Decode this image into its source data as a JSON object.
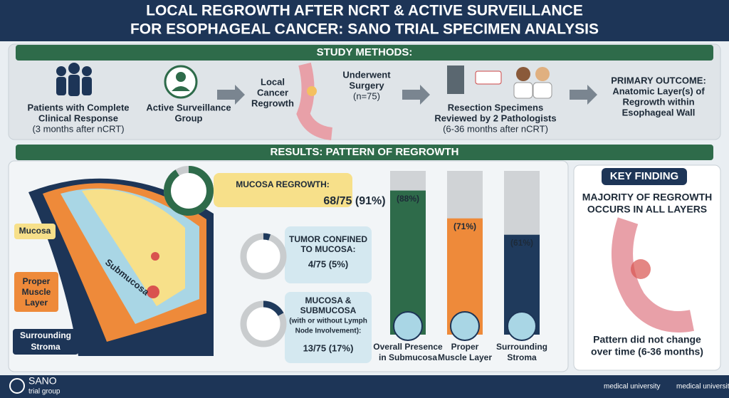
{
  "header": {
    "title": [
      "LOCAL REGROWTH AFTER NCRT & ACTIVE SURVEILLANCE",
      "FOR ESOPHAGEAL CANCER: SANO TRIAL SPECIMEN ANALYSIS"
    ]
  },
  "methods": {
    "title": "STUDY METHODS:",
    "steps": [
      {
        "lines": [
          "Patients with Complete",
          "Clinical Response",
          "(3 months after nCRT)"
        ]
      },
      {
        "lines": [
          "Active Surveillance",
          "Group"
        ]
      },
      {
        "lines": [
          "Local",
          "Cancer",
          "Regrowth"
        ]
      },
      {
        "lines": [
          "Underwent",
          "Surgery",
          "(n=75)"
        ]
      },
      {
        "lines": [
          "Resection Specimens",
          "Reviewed by 2 Pathologists",
          "(6-36 months after nCRT)"
        ]
      },
      {
        "lines": [
          "PRIMARY OUTCOME:",
          "Anatomic Layer(s) of",
          "Regrowth within",
          "Esophageal Wall"
        ]
      }
    ]
  },
  "results": {
    "title": "RESULTS: PATTERN OF REGROWTH",
    "layers": {
      "mucosa": "Mucosa",
      "submucosa": "Submucosa",
      "muscle": [
        "Proper",
        "Muscle",
        "Layer"
      ],
      "stroma": [
        "Surrounding",
        "Stroma"
      ]
    },
    "donuts": [
      {
        "lines": [
          "MUCOSA REGROWTH:"
        ],
        "value_label": "68/75 (91%)",
        "value": 91
      },
      {
        "lines": [
          "TUMOR CONFINED",
          "TO MUCOSA:"
        ],
        "value_label": "4/75 (5%)",
        "value": 5
      },
      {
        "lines": [
          "MUCOSA &",
          "SUBMUCOSA",
          "(with or without Lymph",
          "Node Involvement):"
        ],
        "value_label": "13/75 (17%)",
        "value": 17
      }
    ],
    "bars": {
      "ylim": [
        0,
        100
      ],
      "values": [
        88,
        71,
        61
      ],
      "value_labels": [
        "(88%)",
        "(71%)",
        "(61%)"
      ],
      "colors": [
        "#2e6b4a",
        "#ee8a3a",
        "#1f3a5c"
      ],
      "categories": [
        [
          "Overall Presence",
          "in Submucosa"
        ],
        [
          "Proper",
          "Muscle Layer"
        ],
        [
          "Surrounding",
          "Stroma"
        ]
      ]
    }
  },
  "key_finding": {
    "title": "KEY FINDING",
    "headline": [
      "MAJORITY OF REGROWTH",
      "OCCURS IN ALL LAYERS"
    ],
    "note": [
      "Pattern did not change",
      "over time (6-36 months)"
    ]
  },
  "footer": {
    "logo": "SANO",
    "logo_sub": "trial group",
    "partners": [
      "medical university",
      "medical university"
    ]
  }
}
